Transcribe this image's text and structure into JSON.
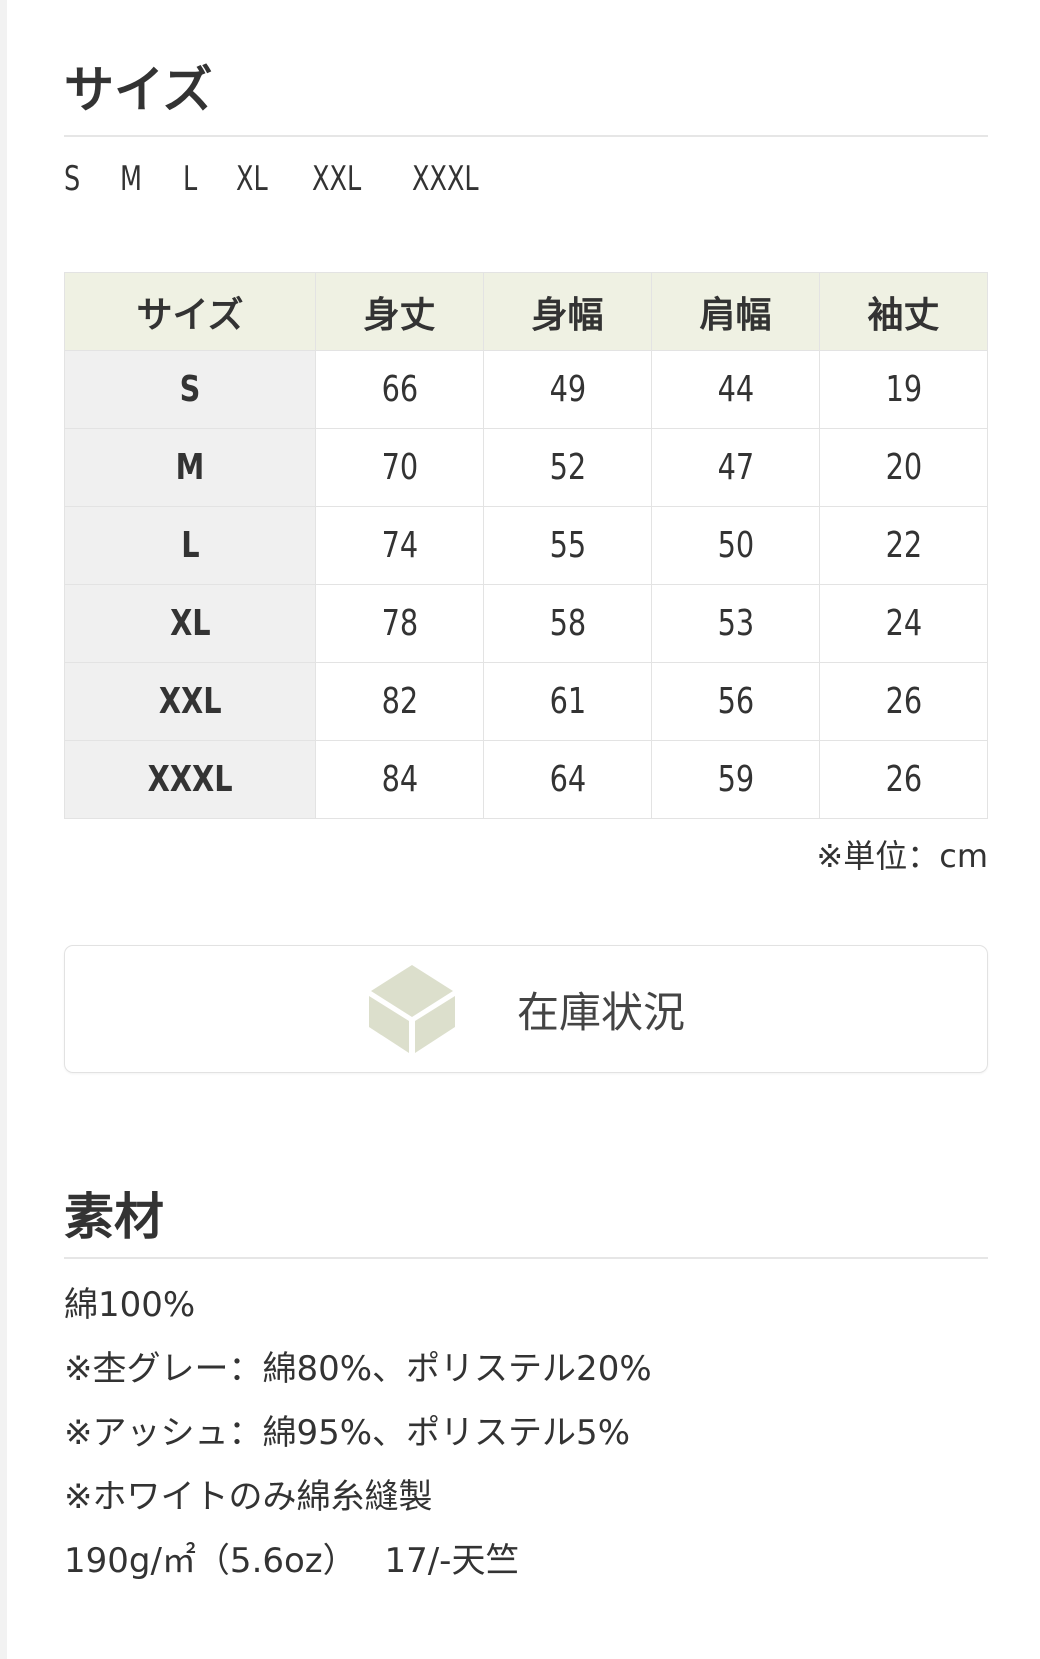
{
  "size_section": {
    "title": "サイズ",
    "sizes": [
      "S",
      "M",
      "L",
      "XL",
      "XXL",
      "XXXL"
    ]
  },
  "size_table": {
    "headers": [
      "サイズ",
      "身丈",
      "身幅",
      "肩幅",
      "袖丈"
    ],
    "rows": [
      [
        "S",
        "66",
        "49",
        "44",
        "19"
      ],
      [
        "M",
        "70",
        "52",
        "47",
        "20"
      ],
      [
        "L",
        "74",
        "55",
        "50",
        "22"
      ],
      [
        "XL",
        "78",
        "58",
        "53",
        "24"
      ],
      [
        "XXL",
        "82",
        "61",
        "56",
        "26"
      ],
      [
        "XXXL",
        "84",
        "64",
        "59",
        "26"
      ]
    ],
    "unit_note": "※単位：cm"
  },
  "stock_button": {
    "label": "在庫状況",
    "icon": "box-icon",
    "icon_color": "#dcdfcc"
  },
  "material_section": {
    "title": "素材",
    "lines": [
      "綿100%",
      "※杢グレー：綿80%、ポリステル20%",
      "※アッシュ：綿95%、ポリステル5%",
      "※ホワイトのみ綿糸縫製",
      "190g/㎡（5.6oz）　 17/-天竺"
    ]
  },
  "colors": {
    "header_bg": "#eff1e3",
    "first_col_bg": "#f0f0f0",
    "text": "#333333"
  }
}
